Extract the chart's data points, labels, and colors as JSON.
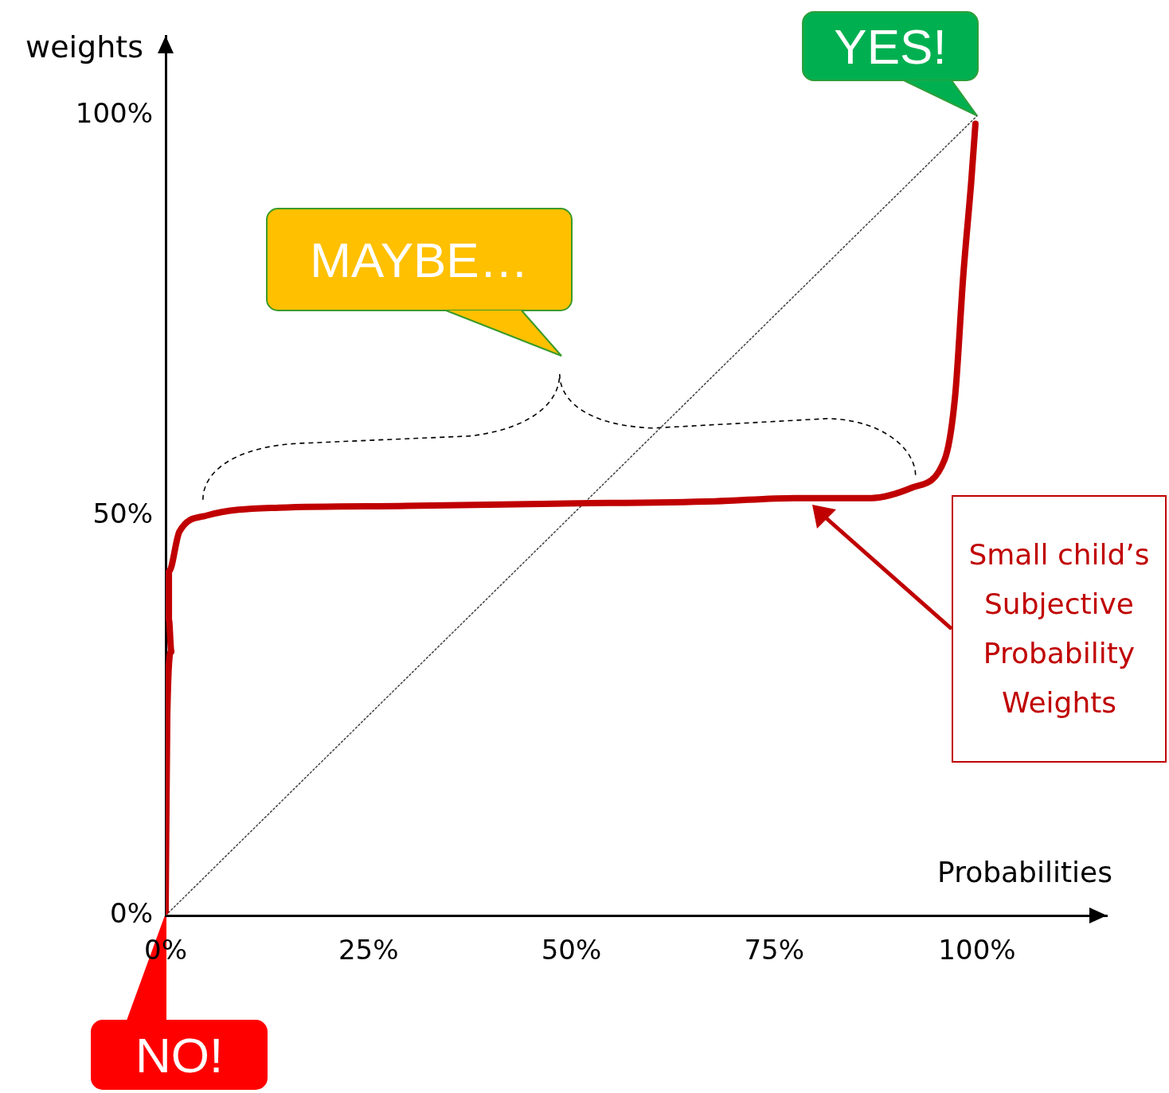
{
  "chart_data": {
    "type": "line",
    "xlabel": "Probabilities",
    "ylabel": "weights",
    "xlim": [
      0,
      116
    ],
    "ylim": [
      0,
      110
    ],
    "xticks": [
      {
        "value": 0,
        "label": "0%"
      },
      {
        "value": 25,
        "label": "25%"
      },
      {
        "value": 50,
        "label": "50%"
      },
      {
        "value": 75,
        "label": "75%"
      },
      {
        "value": 100,
        "label": "100%"
      }
    ],
    "yticks": [
      {
        "value": 0,
        "label": "0%"
      },
      {
        "value": 50,
        "label": "50%"
      },
      {
        "value": 100,
        "label": "100%"
      }
    ],
    "grid": false,
    "legend": false,
    "marker": "none",
    "series": [
      {
        "name": "Small child’s Subjective Probability Weights",
        "color": "#c00000",
        "line_style": "solid",
        "x": [
          0,
          0.2,
          0.7,
          0.4,
          0.4,
          1.7,
          5,
          14,
          28.6,
          48,
          67.7,
          77.5,
          87,
          92,
          96,
          97.3,
          98.3,
          99.3,
          99.8
        ],
        "values": [
          0.5,
          25,
          33,
          37,
          43,
          48,
          50,
          51,
          51.2,
          51.5,
          51.8,
          52.2,
          52.2,
          53.5,
          57,
          65,
          80,
          92,
          99
        ]
      },
      {
        "color": "#404040",
        "line_style": "dotted",
        "x": [
          0,
          100
        ],
        "values": [
          0,
          100
        ]
      }
    ],
    "annotations": [
      {
        "text": "YES!",
        "x": 100,
        "y": 100
      },
      {
        "text": "MAYBE…"
      },
      {
        "text": "NO!",
        "x": 0,
        "y": 0
      }
    ]
  }
}
